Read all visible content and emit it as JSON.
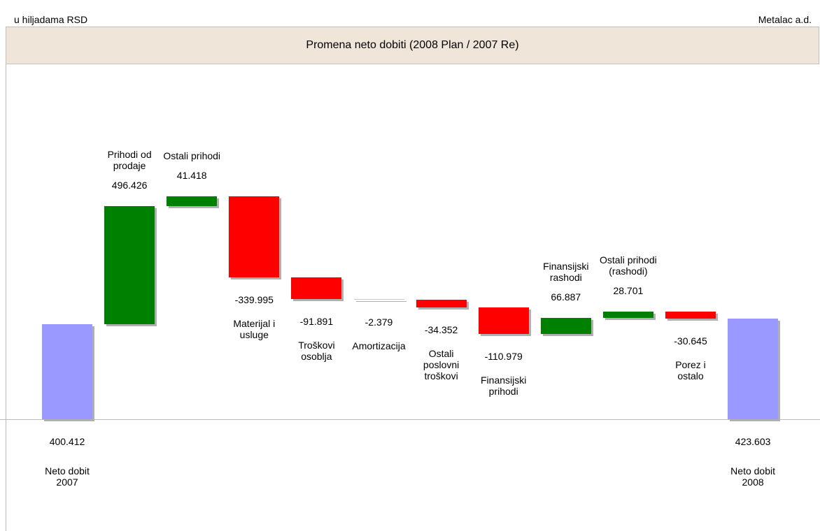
{
  "chart_data": {
    "type": "waterfall",
    "title": "Promena neto dobiti (2008 Plan / 2007 Re)",
    "subtitle": "u hiljadama RSD",
    "company": "Metalac a.d.",
    "categories": [
      "Neto dobit 2007",
      "Prihodi od prodaje",
      "Ostali prihodi",
      "Materijal i usluge",
      "Troškovi osoblja",
      "Amortizacija",
      "Ostali poslovni troškovi",
      "Finansijski prihodi",
      "Finansijski rashodi",
      "Ostali prihodi (rashodi)",
      "Porez i ostalo",
      "Neto dobit 2008"
    ],
    "values": [
      400412,
      496426,
      41418,
      -339995,
      -91891,
      -2379,
      -34352,
      -110979,
      66887,
      28701,
      -30645,
      423603
    ],
    "value_labels": [
      "400.412",
      "496.426",
      "41.418",
      "-339.995",
      "-91.891",
      "-2.379",
      "-34.352",
      "-110.979",
      "66.887",
      "28.701",
      "-30.645",
      "423.603"
    ],
    "measure": [
      "absolute",
      "relative",
      "relative",
      "relative",
      "relative",
      "relative",
      "relative",
      "relative",
      "relative",
      "relative",
      "relative",
      "total"
    ],
    "colors": {
      "total": "#9999ff",
      "increase": "#008000",
      "decrease": "#ff0000"
    }
  }
}
